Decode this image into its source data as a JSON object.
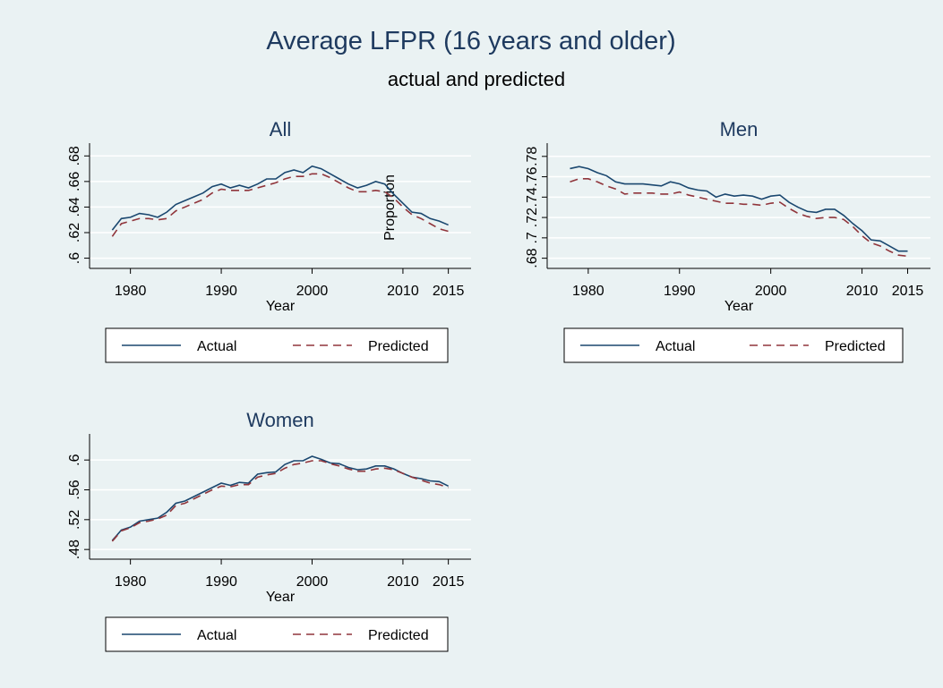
{
  "title": "Average LFPR (16 years and older)",
  "subtitle": "actual and predicted",
  "chart_data": [
    {
      "type": "line",
      "title": "All",
      "xlabel": "Year",
      "ylabel": "Proportion",
      "x": [
        1978,
        1979,
        1980,
        1981,
        1982,
        1983,
        1984,
        1985,
        1986,
        1987,
        1988,
        1989,
        1990,
        1991,
        1992,
        1993,
        1994,
        1995,
        1996,
        1997,
        1998,
        1999,
        2000,
        2001,
        2002,
        2003,
        2004,
        2005,
        2006,
        2007,
        2008,
        2009,
        2010,
        2011,
        2012,
        2013,
        2014,
        2015
      ],
      "xlim": [
        1975.5,
        2017.5
      ],
      "xticks": [
        1980,
        1990,
        2000,
        2010,
        2015
      ],
      "ylim": [
        0.592,
        0.69
      ],
      "yticks": [
        {
          "value": 0.6,
          "label": ".6"
        },
        {
          "value": 0.62,
          "label": ".62"
        },
        {
          "value": 0.64,
          "label": ".64"
        },
        {
          "value": 0.66,
          "label": ".66"
        },
        {
          "value": 0.68,
          "label": ".68"
        }
      ],
      "grid": true,
      "series": [
        {
          "name": "Actual",
          "color": "#1a476f",
          "dash": "solid",
          "values": [
            0.622,
            0.631,
            0.632,
            0.635,
            0.634,
            0.632,
            0.636,
            0.642,
            0.645,
            0.648,
            0.651,
            0.656,
            0.658,
            0.655,
            0.657,
            0.655,
            0.658,
            0.662,
            0.662,
            0.667,
            0.669,
            0.667,
            0.672,
            0.67,
            0.666,
            0.662,
            0.658,
            0.655,
            0.657,
            0.66,
            0.658,
            0.65,
            0.643,
            0.636,
            0.635,
            0.631,
            0.629,
            0.626
          ]
        },
        {
          "name": "Predicted",
          "color": "#90353b",
          "dash": "dashed",
          "values": [
            0.617,
            0.627,
            0.629,
            0.631,
            0.631,
            0.63,
            0.631,
            0.637,
            0.64,
            0.643,
            0.646,
            0.651,
            0.654,
            0.653,
            0.653,
            0.653,
            0.655,
            0.657,
            0.659,
            0.662,
            0.664,
            0.664,
            0.666,
            0.666,
            0.663,
            0.659,
            0.655,
            0.652,
            0.652,
            0.653,
            0.652,
            0.647,
            0.64,
            0.634,
            0.631,
            0.627,
            0.623,
            0.621
          ]
        }
      ]
    },
    {
      "type": "line",
      "title": "Men",
      "xlabel": "Year",
      "x": [
        1978,
        1979,
        1980,
        1981,
        1982,
        1983,
        1984,
        1985,
        1986,
        1987,
        1988,
        1989,
        1990,
        1991,
        1992,
        1993,
        1994,
        1995,
        1996,
        1997,
        1998,
        1999,
        2000,
        2001,
        2002,
        2003,
        2004,
        2005,
        2006,
        2007,
        2008,
        2009,
        2010,
        2011,
        2012,
        2013,
        2014,
        2015
      ],
      "xlim": [
        1975.5,
        2017.5
      ],
      "xticks": [
        1980,
        1990,
        2000,
        2010,
        2015
      ],
      "ylim": [
        0.67,
        0.793
      ],
      "yticks": [
        {
          "value": 0.68,
          "label": ".68"
        },
        {
          "value": 0.7,
          "label": ".7"
        },
        {
          "value": 0.72,
          "label": ".72"
        },
        {
          "value": 0.74,
          "label": ".74"
        },
        {
          "value": 0.76,
          "label": ".76"
        },
        {
          "value": 0.78,
          "label": ".78"
        }
      ],
      "grid": true,
      "series": [
        {
          "name": "Actual",
          "color": "#1a476f",
          "dash": "solid",
          "values": [
            0.768,
            0.77,
            0.768,
            0.764,
            0.761,
            0.755,
            0.753,
            0.753,
            0.753,
            0.752,
            0.751,
            0.755,
            0.753,
            0.749,
            0.747,
            0.746,
            0.74,
            0.743,
            0.741,
            0.742,
            0.741,
            0.738,
            0.741,
            0.742,
            0.735,
            0.73,
            0.726,
            0.725,
            0.728,
            0.728,
            0.722,
            0.714,
            0.707,
            0.698,
            0.697,
            0.692,
            0.687,
            0.687
          ]
        },
        {
          "name": "Predicted",
          "color": "#90353b",
          "dash": "dashed",
          "values": [
            0.755,
            0.758,
            0.758,
            0.755,
            0.751,
            0.748,
            0.743,
            0.744,
            0.744,
            0.744,
            0.743,
            0.743,
            0.745,
            0.742,
            0.74,
            0.738,
            0.736,
            0.734,
            0.734,
            0.733,
            0.733,
            0.732,
            0.734,
            0.735,
            0.729,
            0.724,
            0.721,
            0.719,
            0.72,
            0.72,
            0.718,
            0.711,
            0.702,
            0.695,
            0.692,
            0.687,
            0.683,
            0.682
          ]
        }
      ]
    },
    {
      "type": "line",
      "title": "Women",
      "xlabel": "Year",
      "x": [
        1978,
        1979,
        1980,
        1981,
        1982,
        1983,
        1984,
        1985,
        1986,
        1987,
        1988,
        1989,
        1990,
        1991,
        1992,
        1993,
        1994,
        1995,
        1996,
        1997,
        1998,
        1999,
        2000,
        2001,
        2002,
        2003,
        2004,
        2005,
        2006,
        2007,
        2008,
        2009,
        2010,
        2011,
        2012,
        2013,
        2014,
        2015
      ],
      "xlim": [
        1975.5,
        2017.5
      ],
      "xticks": [
        1980,
        1990,
        2000,
        2010,
        2015
      ],
      "ylim": [
        0.467,
        0.635
      ],
      "yticks": [
        {
          "value": 0.48,
          "label": ".48"
        },
        {
          "value": 0.52,
          "label": ".52"
        },
        {
          "value": 0.56,
          "label": ".56"
        },
        {
          "value": 0.6,
          "label": ".6"
        }
      ],
      "grid": true,
      "series": [
        {
          "name": "Actual",
          "color": "#1a476f",
          "dash": "solid",
          "values": [
            0.492,
            0.506,
            0.51,
            0.518,
            0.52,
            0.522,
            0.53,
            0.542,
            0.545,
            0.551,
            0.557,
            0.563,
            0.569,
            0.566,
            0.57,
            0.569,
            0.581,
            0.583,
            0.584,
            0.594,
            0.599,
            0.599,
            0.605,
            0.601,
            0.596,
            0.595,
            0.59,
            0.587,
            0.588,
            0.592,
            0.592,
            0.588,
            0.582,
            0.577,
            0.575,
            0.572,
            0.571,
            0.565
          ]
        },
        {
          "name": "Predicted",
          "color": "#90353b",
          "dash": "dashed",
          "values": [
            0.491,
            0.505,
            0.509,
            0.516,
            0.518,
            0.521,
            0.526,
            0.539,
            0.542,
            0.548,
            0.554,
            0.56,
            0.565,
            0.564,
            0.567,
            0.567,
            0.577,
            0.58,
            0.582,
            0.589,
            0.594,
            0.596,
            0.599,
            0.599,
            0.595,
            0.592,
            0.588,
            0.585,
            0.585,
            0.588,
            0.589,
            0.587,
            0.582,
            0.577,
            0.573,
            0.569,
            0.567,
            0.563
          ]
        }
      ]
    }
  ]
}
